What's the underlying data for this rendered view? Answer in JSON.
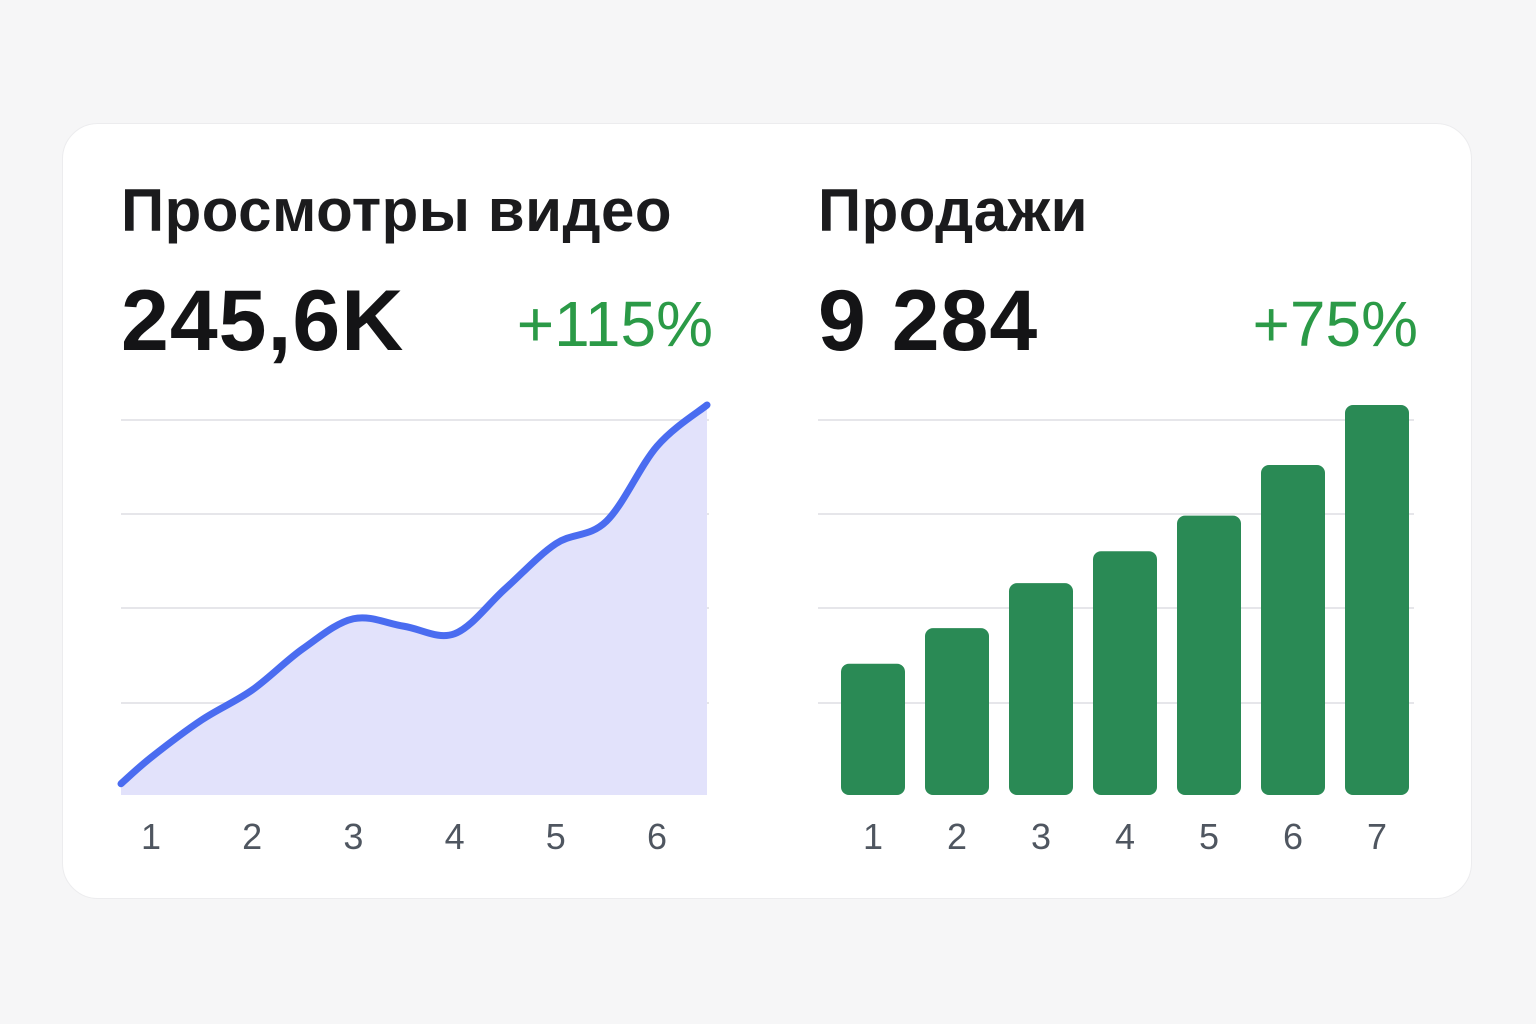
{
  "panels": [
    {
      "title": "Просмотры видео",
      "value": "245,6K",
      "change": "+115%",
      "change_color": "#2b9a47"
    },
    {
      "title": "Продажи",
      "value": "9 284",
      "change": "+75%",
      "change_color": "#2b9a47"
    }
  ],
  "chart_data": [
    {
      "type": "area",
      "title": "Просмотры видео",
      "categories": [
        "1",
        "2",
        "3",
        "4",
        "5",
        "6"
      ],
      "x": [
        0.7,
        1,
        1.5,
        2,
        2.5,
        3,
        3.5,
        4,
        4.5,
        5,
        5.5,
        6,
        6.5
      ],
      "values": [
        0.3,
        1.0,
        2.0,
        2.8,
        3.9,
        4.7,
        4.5,
        4.3,
        5.5,
        6.7,
        7.3,
        9.3,
        10.4
      ],
      "ylim": [
        0,
        10
      ],
      "grid": true,
      "line_color": "#4a6cf0",
      "fill_color": "#e2e2fb"
    },
    {
      "type": "bar",
      "title": "Продажи",
      "categories": [
        "1",
        "2",
        "3",
        "4",
        "5",
        "6",
        "7"
      ],
      "values": [
        3.5,
        4.45,
        5.65,
        6.5,
        7.45,
        8.8,
        10.4
      ],
      "ylim": [
        0,
        10
      ],
      "grid": true,
      "bar_color": "#2a8a55"
    }
  ]
}
